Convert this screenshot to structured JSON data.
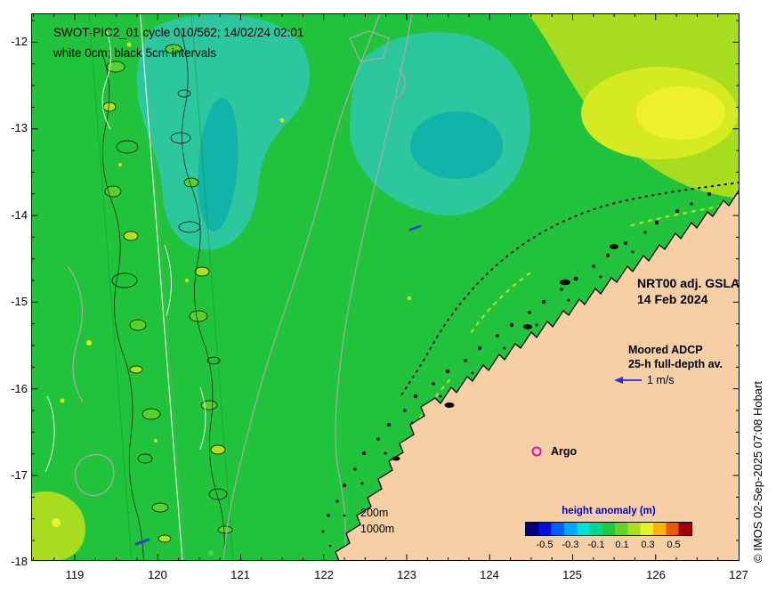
{
  "titles": {
    "line1": "SWOT-PIC2_01 cycle 010/562; 14/02/24 02:01",
    "line2": "white 0cm; black 5cm intervals"
  },
  "annotations": {
    "gsla_line1": "NRT00 adj. GSLA",
    "gsla_line2": "14 Feb 2024",
    "adcp_line1": "Moored ADCP",
    "adcp_line2": "25-h full-depth av.",
    "adcp_speed": "1 m/s",
    "argo_label": "Argo",
    "depth_200": "200m",
    "depth_1000": "1000m",
    "credit": "© IMOS 02-Sep-2025 07:08 Hobart"
  },
  "axes": {
    "x_ticks": [
      "119",
      "120",
      "121",
      "122",
      "123",
      "124",
      "125",
      "126",
      "127"
    ],
    "y_ticks": [
      "-12",
      "-13",
      "-14",
      "-15",
      "-16",
      "-17",
      "-18"
    ]
  },
  "colorbar": {
    "title": "height anomaly (m)",
    "tick_labels": [
      "-0.5",
      "-0.3",
      "-0.1",
      "0.1",
      "0.3",
      "0.5"
    ]
  },
  "map": {
    "colors": {
      "ocean_green": "#22c33c",
      "negative_teal": "#2cc79e",
      "negative_teal_dark": "#12b3a8",
      "positive_yellow_green": "#a8dc1e",
      "positive_yellow": "#eef02c",
      "land": "#f7cfa4",
      "bathymetry_gray": "#a9a9a9",
      "adcp_arrow_blue": "#2233dd",
      "argo_magenta": "#ff00bb"
    }
  }
}
